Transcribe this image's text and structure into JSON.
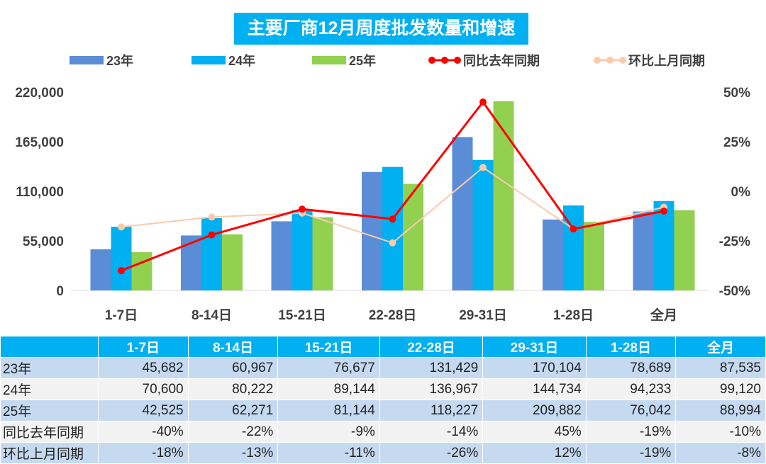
{
  "chart_data": {
    "type": "bar",
    "title": "主要厂商12月周度批发数量和增速",
    "categories": [
      "1-7日",
      "8-14日",
      "15-21日",
      "22-28日",
      "29-31日",
      "1-28日",
      "全月"
    ],
    "series": [
      {
        "name": "23年",
        "type": "bar",
        "axis": "left",
        "color": "#5B8DD6",
        "values": [
          45682,
          60967,
          76677,
          131429,
          170104,
          78689,
          87535
        ]
      },
      {
        "name": "24年",
        "type": "bar",
        "axis": "left",
        "color": "#00B0F0",
        "values": [
          70600,
          80222,
          89144,
          136967,
          144734,
          94233,
          99120
        ]
      },
      {
        "name": "25年",
        "type": "bar",
        "axis": "left",
        "color": "#92D050",
        "values": [
          42525,
          62271,
          81144,
          118227,
          209882,
          76042,
          88994
        ]
      },
      {
        "name": "同比去年同期",
        "type": "line",
        "axis": "right",
        "color": "#FF0000",
        "values": [
          -40,
          -22,
          -9,
          -14,
          45,
          -19,
          -10
        ]
      },
      {
        "name": "环比上月同期",
        "type": "line",
        "axis": "right",
        "color": "#F8CBAD",
        "values": [
          -18,
          -13,
          -11,
          -26,
          12,
          -19,
          -8
        ]
      }
    ],
    "y_left": {
      "range": [
        0,
        220000
      ],
      "ticks": [
        "0",
        "55,000",
        "110,000",
        "165,000",
        "220,000"
      ]
    },
    "y_right": {
      "range": [
        -50,
        50
      ],
      "ticks": [
        "-50%",
        "-25%",
        "0%",
        "25%",
        "50%"
      ]
    },
    "legend_position": "top",
    "grid": false
  },
  "table": {
    "header": [
      "",
      "1-7日",
      "8-14日",
      "15-21日",
      "22-28日",
      "29-31日",
      "1-28日",
      "全月"
    ],
    "rows": [
      [
        "23年",
        "45,682",
        "60,967",
        "76,677",
        "131,429",
        "170,104",
        "78,689",
        "87,535"
      ],
      [
        "24年",
        "70,600",
        "80,222",
        "89,144",
        "136,967",
        "144,734",
        "94,233",
        "99,120"
      ],
      [
        "25年",
        "42,525",
        "62,271",
        "81,144",
        "118,227",
        "209,882",
        "76,042",
        "88,994"
      ],
      [
        "同比去年同期",
        "-40%",
        "-22%",
        "-9%",
        "-14%",
        "45%",
        "-19%",
        "-10%"
      ],
      [
        "环比上月同期",
        "-18%",
        "-13%",
        "-11%",
        "-26%",
        "12%",
        "-19%",
        "-8%"
      ]
    ]
  }
}
